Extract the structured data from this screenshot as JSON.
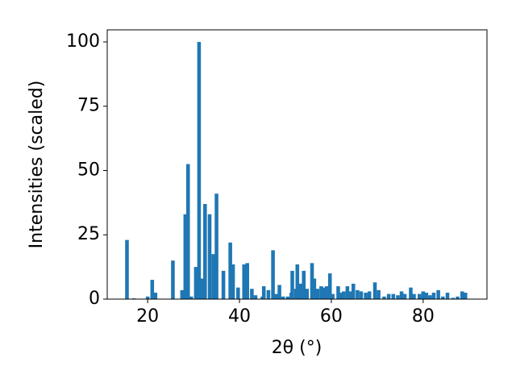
{
  "chart_data": {
    "type": "bar",
    "xlabel": "2θ (°)",
    "ylabel": "Intensities (scaled)",
    "color": "#1f77b4",
    "x": [
      15.5,
      17,
      20,
      21,
      21.7,
      25.5,
      27.5,
      28.2,
      28.8,
      29.5,
      30.5,
      31.2,
      31.8,
      32.5,
      33.5,
      34.3,
      35,
      36.5,
      38,
      38.6,
      39.7,
      41,
      41.7,
      42.7,
      43.5,
      45,
      45.3,
      46.3,
      47.3,
      48,
      48.7,
      49.5,
      50.5,
      51.3,
      51.5,
      52.3,
      52.6,
      53.3,
      54,
      54.7,
      55.8,
      56.3,
      57,
      57.8,
      58.5,
      59,
      59.7,
      60.3,
      61.5,
      62.2,
      62.7,
      63.5,
      64.2,
      64.8,
      65.7,
      66.5,
      67.5,
      68.3,
      69.5,
      70.3,
      71.5,
      72.5,
      73.5,
      74.5,
      75.3,
      76,
      77.3,
      78,
      79.2,
      80,
      80.7,
      81.5,
      82.3,
      83.3,
      84.3,
      85.3,
      86.5,
      87.5,
      88.5,
      89.2
    ],
    "values": [
      23,
      0.3,
      1,
      7.5,
      2.5,
      15,
      3.5,
      33,
      52.5,
      1,
      12.5,
      100,
      8,
      37,
      33,
      17.5,
      41,
      11,
      22,
      13.5,
      4.5,
      13.5,
      14,
      4,
      1.5,
      1,
      5,
      3.5,
      19,
      2,
      5.5,
      1,
      1,
      2.5,
      11,
      4,
      13.5,
      6,
      11,
      4,
      14,
      8,
      4,
      5,
      4.5,
      5,
      10,
      2,
      5,
      2.5,
      3,
      5,
      3,
      6,
      3.5,
      3,
      2.5,
      3,
      6.5,
      3.5,
      1,
      2,
      2,
      1.5,
      3,
      2,
      4.5,
      2,
      2,
      3,
      2.5,
      1.5,
      2.5,
      3.5,
      1,
      2.5,
      0.5,
      1,
      3,
      2.5
    ],
    "xlim": [
      11.2,
      93.9
    ],
    "ylim": [
      0,
      104.7
    ],
    "xticks": [
      20,
      40,
      60,
      80
    ],
    "yticks": [
      0,
      25,
      50,
      75,
      100
    ]
  }
}
